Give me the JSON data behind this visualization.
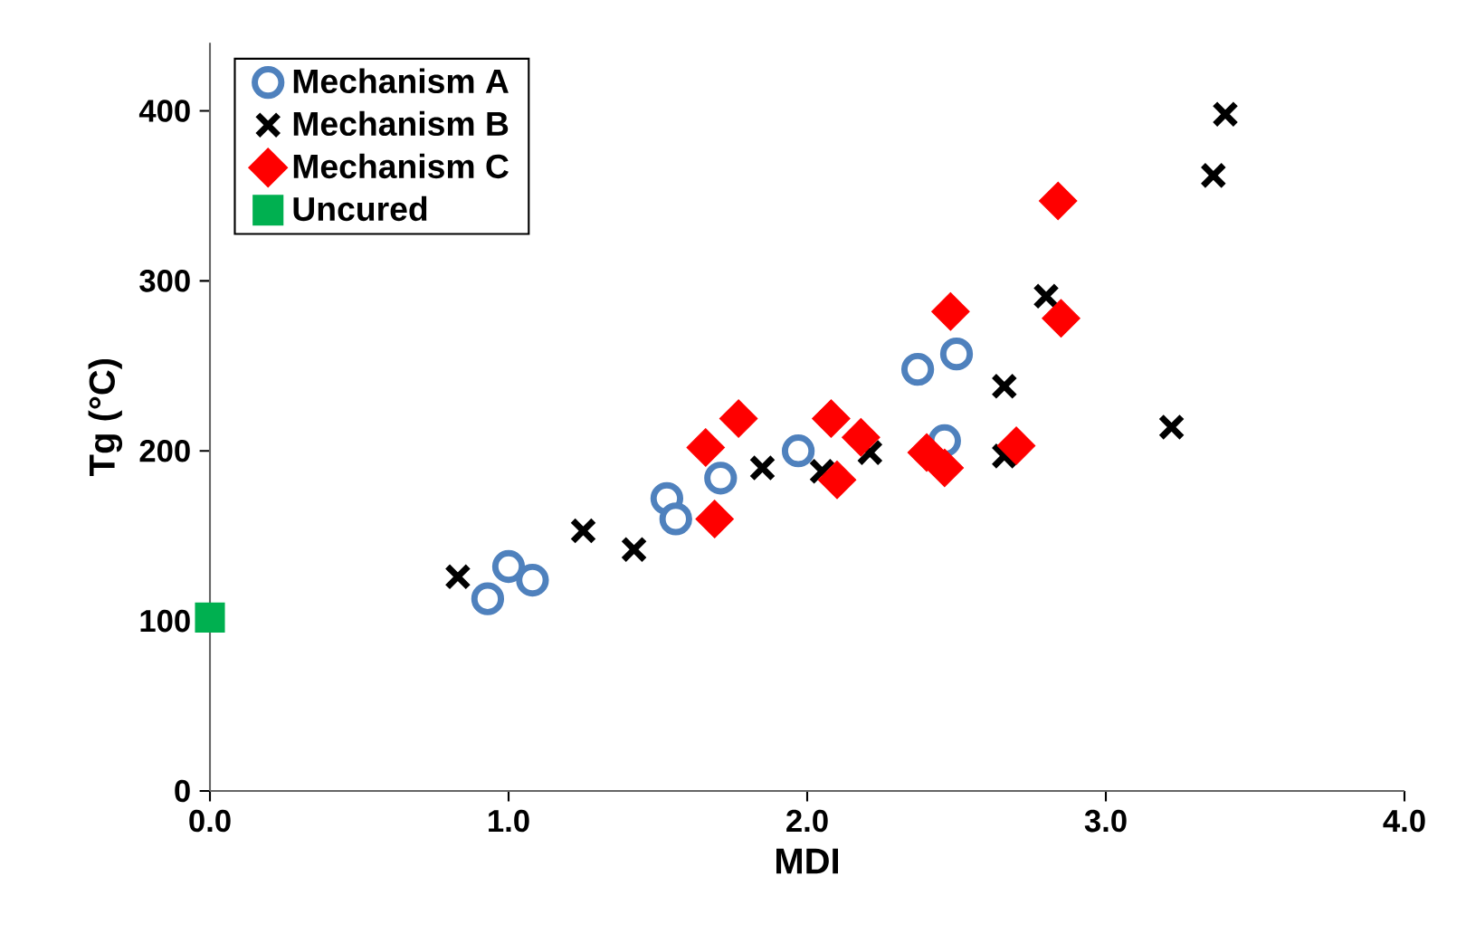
{
  "chart_data": {
    "type": "scatter",
    "xlabel": "MDI",
    "ylabel": "Tg (°C)",
    "xlim": [
      0,
      4
    ],
    "ylim": [
      0,
      440
    ],
    "xticks": [
      {
        "value": 0,
        "label": "0.0"
      },
      {
        "value": 1,
        "label": "1.0"
      },
      {
        "value": 2,
        "label": "2.0"
      },
      {
        "value": 3,
        "label": "3.0"
      },
      {
        "value": 4,
        "label": "4.0"
      }
    ],
    "yticks": [
      0,
      100,
      200,
      300,
      400
    ],
    "grid": false,
    "legend": "top left",
    "series": [
      {
        "name": "Mechanism A",
        "color": "#4f81bd",
        "marker": "circle",
        "x": [
          0.93,
          1.0,
          1.08,
          1.53,
          1.56,
          1.71,
          1.97,
          2.37,
          2.5,
          2.46
        ],
        "values": [
          113,
          132,
          124,
          172,
          160,
          184,
          200,
          248,
          257,
          206
        ]
      },
      {
        "name": "Mechanism B",
        "color": "#000000",
        "marker": "cross",
        "x": [
          0.83,
          1.25,
          1.42,
          1.85,
          2.05,
          2.21,
          2.66,
          2.66,
          2.8,
          3.22,
          3.36,
          3.4
        ],
        "values": [
          126,
          153,
          142,
          190,
          188,
          199,
          197,
          238,
          291,
          214,
          362,
          398
        ]
      },
      {
        "name": "Mechanism C",
        "color": "#ff0000",
        "marker": "diamond",
        "x": [
          1.66,
          1.77,
          1.69,
          2.08,
          2.18,
          2.1,
          2.4,
          2.46,
          2.48,
          2.7,
          2.84,
          2.85
        ],
        "values": [
          202,
          219,
          160,
          219,
          208,
          183,
          199,
          190,
          282,
          203,
          347,
          278
        ]
      },
      {
        "name": "Uncured",
        "color": "#00b050",
        "marker": "square",
        "x": [
          0.0
        ],
        "values": [
          102
        ]
      }
    ]
  }
}
